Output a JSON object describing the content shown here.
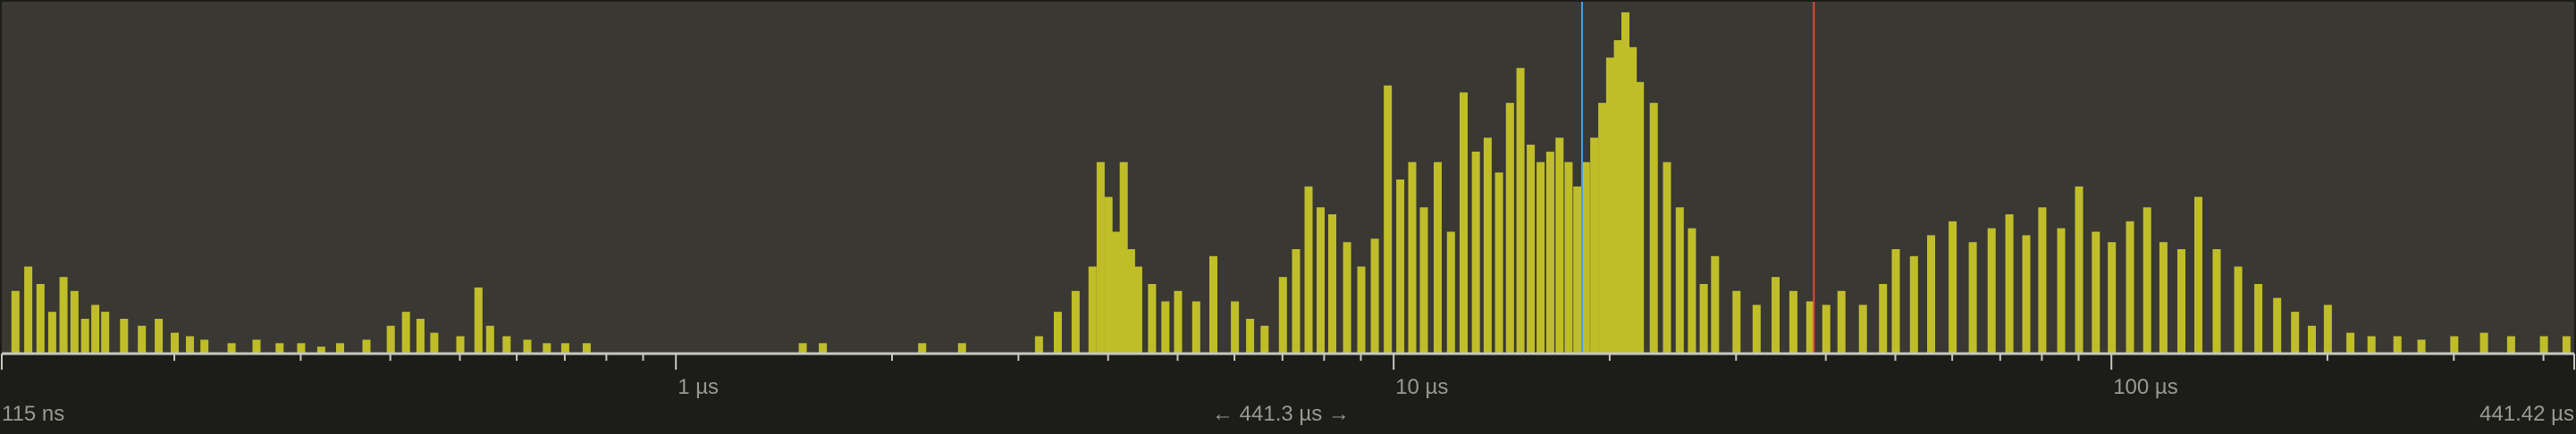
{
  "panel": {
    "background": "#3a3833",
    "footer_background": "#1c1c18",
    "bar_color": "#c0be28",
    "axis_color": "#c8c8c0",
    "text_color": "#9a9a92"
  },
  "axis": {
    "scale": "log",
    "domain_seconds": [
      1.15e-07,
      0.00044142
    ],
    "major_tick_labels": [
      {
        "label": "1 µs",
        "value": 1e-06
      },
      {
        "label": "10 µs",
        "value": 1e-05
      },
      {
        "label": "100 µs",
        "value": 0.0001
      }
    ],
    "start_label": "115 ns",
    "end_label": "441.42 µs",
    "range_label": "← 441.3 µs →"
  },
  "markers": [
    {
      "name": "blue-marker",
      "color": "#4a9ee0",
      "value_us": 18.3
    },
    {
      "name": "red-marker",
      "color": "#e0483a",
      "value_us": 38.5
    }
  ],
  "chart_data": {
    "type": "bar",
    "x_scale": "log",
    "x_range_us": [
      0.115,
      441.42
    ],
    "series": [
      {
        "values": [
          [
            0.12,
            0.18
          ],
          [
            0.125,
            0.25
          ],
          [
            0.13,
            0.2
          ],
          [
            0.135,
            0.12
          ],
          [
            0.14,
            0.22
          ],
          [
            0.145,
            0.18
          ],
          [
            0.15,
            0.1
          ],
          [
            0.155,
            0.14
          ],
          [
            0.16,
            0.12
          ],
          [
            0.17,
            0.1
          ],
          [
            0.18,
            0.08
          ],
          [
            0.19,
            0.1
          ],
          [
            0.2,
            0.06
          ],
          [
            0.21,
            0.05
          ],
          [
            0.22,
            0.04
          ],
          [
            0.24,
            0.03
          ],
          [
            0.26,
            0.04
          ],
          [
            0.28,
            0.03
          ],
          [
            0.3,
            0.03
          ],
          [
            0.32,
            0.02
          ],
          [
            0.34,
            0.03
          ],
          [
            0.37,
            0.04
          ],
          [
            0.4,
            0.08
          ],
          [
            0.42,
            0.12
          ],
          [
            0.44,
            0.1
          ],
          [
            0.46,
            0.06
          ],
          [
            0.5,
            0.05
          ],
          [
            0.53,
            0.19
          ],
          [
            0.55,
            0.08
          ],
          [
            0.58,
            0.05
          ],
          [
            0.62,
            0.04
          ],
          [
            0.66,
            0.03
          ],
          [
            0.7,
            0.03
          ],
          [
            0.75,
            0.03
          ],
          [
            1.5,
            0.03
          ],
          [
            1.6,
            0.03
          ],
          [
            2.2,
            0.03
          ],
          [
            2.5,
            0.03
          ],
          [
            3.2,
            0.05
          ],
          [
            3.4,
            0.12
          ],
          [
            3.6,
            0.18
          ],
          [
            3.8,
            0.25
          ],
          [
            3.9,
            0.55
          ],
          [
            4.0,
            0.45
          ],
          [
            4.1,
            0.35
          ],
          [
            4.2,
            0.55
          ],
          [
            4.3,
            0.3
          ],
          [
            4.4,
            0.25
          ],
          [
            4.6,
            0.2
          ],
          [
            4.8,
            0.15
          ],
          [
            5.0,
            0.18
          ],
          [
            5.3,
            0.15
          ],
          [
            5.6,
            0.28
          ],
          [
            6.0,
            0.15
          ],
          [
            6.3,
            0.1
          ],
          [
            6.6,
            0.08
          ],
          [
            7.0,
            0.22
          ],
          [
            7.3,
            0.3
          ],
          [
            7.6,
            0.48
          ],
          [
            7.9,
            0.42
          ],
          [
            8.2,
            0.4
          ],
          [
            8.6,
            0.32
          ],
          [
            9.0,
            0.25
          ],
          [
            9.4,
            0.33
          ],
          [
            9.8,
            0.77
          ],
          [
            10.2,
            0.5
          ],
          [
            10.6,
            0.55
          ],
          [
            11.0,
            0.42
          ],
          [
            11.5,
            0.55
          ],
          [
            12.0,
            0.35
          ],
          [
            12.5,
            0.75
          ],
          [
            13.0,
            0.58
          ],
          [
            13.5,
            0.62
          ],
          [
            14.0,
            0.52
          ],
          [
            14.5,
            0.72
          ],
          [
            15.0,
            0.82
          ],
          [
            15.5,
            0.6
          ],
          [
            16.0,
            0.55
          ],
          [
            16.5,
            0.58
          ],
          [
            17.0,
            0.62
          ],
          [
            17.5,
            0.55
          ],
          [
            18.0,
            0.48
          ],
          [
            18.5,
            0.55
          ],
          [
            19.0,
            0.62
          ],
          [
            19.5,
            0.72
          ],
          [
            20.0,
            0.85
          ],
          [
            20.5,
            0.9
          ],
          [
            21.0,
            0.98
          ],
          [
            21.5,
            0.88
          ],
          [
            22.0,
            0.78
          ],
          [
            23.0,
            0.72
          ],
          [
            24.0,
            0.55
          ],
          [
            25.0,
            0.42
          ],
          [
            26.0,
            0.36
          ],
          [
            27.0,
            0.2
          ],
          [
            28.0,
            0.28
          ],
          [
            30.0,
            0.18
          ],
          [
            32.0,
            0.14
          ],
          [
            34.0,
            0.22
          ],
          [
            36.0,
            0.18
          ],
          [
            38.0,
            0.15
          ],
          [
            40.0,
            0.14
          ],
          [
            42.0,
            0.18
          ],
          [
            45.0,
            0.14
          ],
          [
            48.0,
            0.2
          ],
          [
            50.0,
            0.3
          ],
          [
            53.0,
            0.28
          ],
          [
            56.0,
            0.34
          ],
          [
            60.0,
            0.38
          ],
          [
            64.0,
            0.32
          ],
          [
            68.0,
            0.36
          ],
          [
            72.0,
            0.4
          ],
          [
            76.0,
            0.34
          ],
          [
            80.0,
            0.42
          ],
          [
            85.0,
            0.36
          ],
          [
            90.0,
            0.48
          ],
          [
            95.0,
            0.35
          ],
          [
            100.0,
            0.32
          ],
          [
            106.0,
            0.38
          ],
          [
            112.0,
            0.42
          ],
          [
            118.0,
            0.32
          ],
          [
            125.0,
            0.3
          ],
          [
            132.0,
            0.45
          ],
          [
            140.0,
            0.3
          ],
          [
            150.0,
            0.25
          ],
          [
            160.0,
            0.2
          ],
          [
            170.0,
            0.16
          ],
          [
            180.0,
            0.12
          ],
          [
            190.0,
            0.08
          ],
          [
            200.0,
            0.14
          ],
          [
            215.0,
            0.06
          ],
          [
            230.0,
            0.05
          ],
          [
            250.0,
            0.05
          ],
          [
            270.0,
            0.04
          ],
          [
            300.0,
            0.05
          ],
          [
            330.0,
            0.06
          ],
          [
            360.0,
            0.05
          ],
          [
            400.0,
            0.05
          ],
          [
            430.0,
            0.05
          ]
        ]
      }
    ]
  }
}
